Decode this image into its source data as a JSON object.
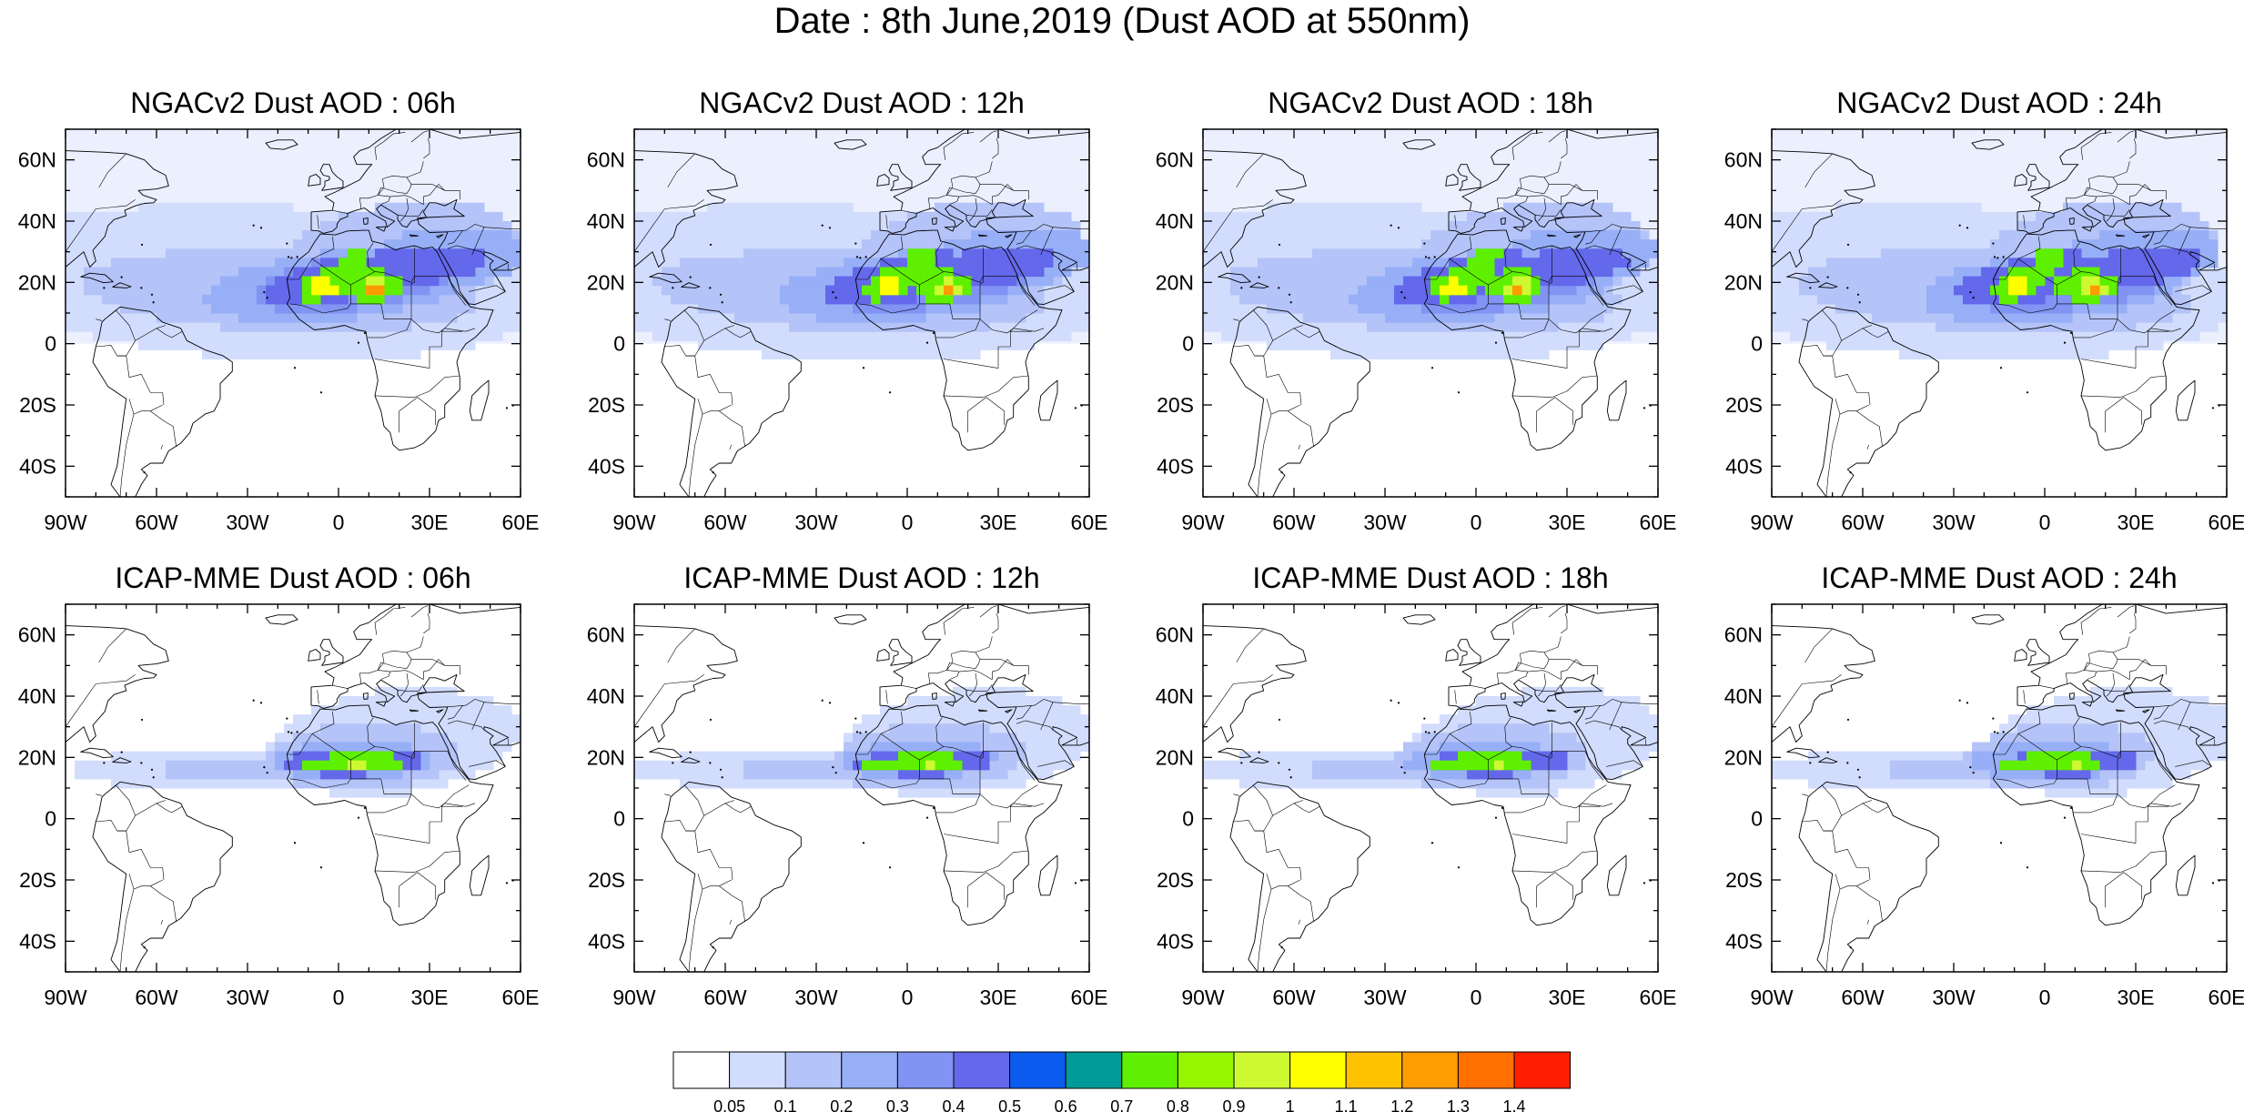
{
  "title": "Date : 8th June,2019 (Dust AOD at 550nm)",
  "panels": [
    {
      "title": "NGACv2 Dust AOD : 06h",
      "model": "NGACv2",
      "hour": 6
    },
    {
      "title": "NGACv2 Dust AOD : 12h",
      "model": "NGACv2",
      "hour": 12
    },
    {
      "title": "NGACv2 Dust AOD : 18h",
      "model": "NGACv2",
      "hour": 18
    },
    {
      "title": "NGACv2 Dust AOD : 24h",
      "model": "NGACv2",
      "hour": 24
    },
    {
      "title": "ICAP-MME Dust AOD : 06h",
      "model": "ICAP-MME",
      "hour": 6
    },
    {
      "title": "ICAP-MME Dust AOD : 12h",
      "model": "ICAP-MME",
      "hour": 12
    },
    {
      "title": "ICAP-MME Dust AOD : 18h",
      "model": "ICAP-MME",
      "hour": 18
    },
    {
      "title": "ICAP-MME Dust AOD : 24h",
      "model": "ICAP-MME",
      "hour": 24
    }
  ],
  "map_extent": {
    "lon": [
      -90,
      60
    ],
    "lat": [
      -50,
      70
    ]
  },
  "lon_ticks": [
    {
      "value": -90,
      "label": "90W"
    },
    {
      "value": -60,
      "label": "60W"
    },
    {
      "value": -30,
      "label": "30W"
    },
    {
      "value": 0,
      "label": "0"
    },
    {
      "value": 30,
      "label": "30E"
    },
    {
      "value": 60,
      "label": "60E"
    }
  ],
  "lat_ticks": [
    {
      "value": 60,
      "label": "60N"
    },
    {
      "value": 40,
      "label": "40N"
    },
    {
      "value": 20,
      "label": "20N"
    },
    {
      "value": 0,
      "label": "0"
    },
    {
      "value": -20,
      "label": "20S"
    },
    {
      "value": -40,
      "label": "40S"
    }
  ],
  "colorbar": {
    "levels": [
      "0.05",
      "0.1",
      "0.2",
      "0.3",
      "0.4",
      "0.5",
      "0.6",
      "0.7",
      "0.8",
      "0.9",
      "1",
      "1.1",
      "1.2",
      "1.3",
      "1.4"
    ],
    "colors": [
      "#ffffff",
      "#d2dcfc",
      "#b4c3f8",
      "#97aff7",
      "#8193f3",
      "#6468ea",
      "#0b5bef",
      "#009b98",
      "#5ef000",
      "#96f500",
      "#cdf933",
      "#ffff00",
      "#ffc200",
      "#ff9c00",
      "#ff7000",
      "#ff1e00"
    ]
  },
  "coastline_color": "#000000"
}
